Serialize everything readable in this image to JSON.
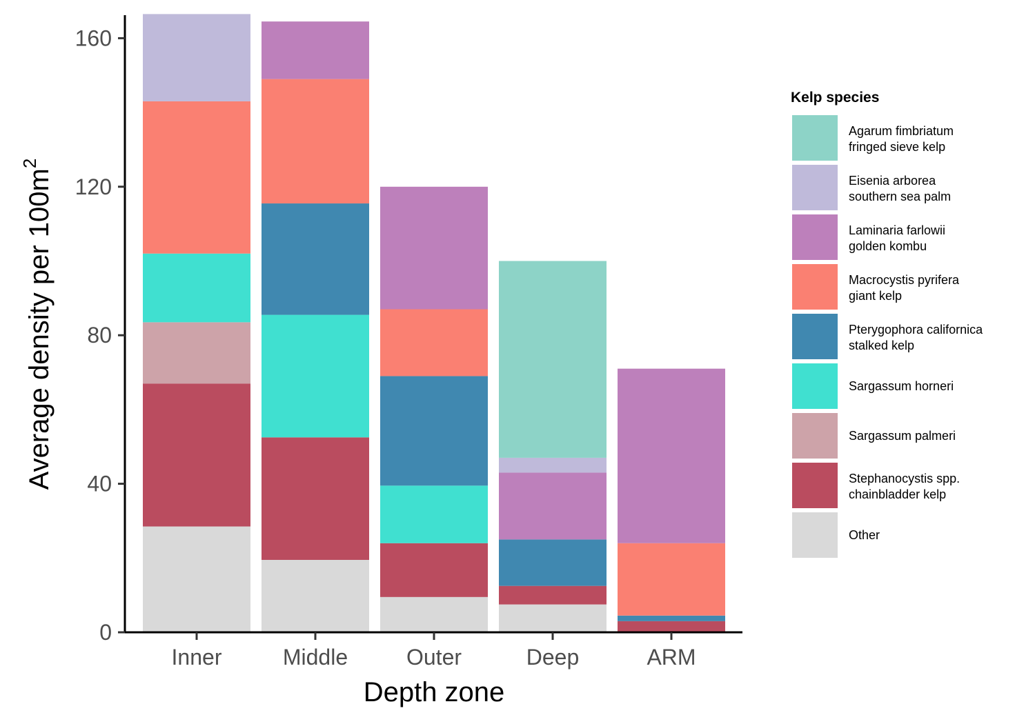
{
  "chart_data": {
    "type": "bar",
    "stacked": true,
    "xlabel": "Depth zone",
    "ylabel": "Average density per 100m",
    "ylabel_superscript": "2",
    "ylim": [
      0,
      166
    ],
    "yticks": [
      0,
      40,
      80,
      120,
      160
    ],
    "grid": false,
    "legend_position": "right",
    "legend_title": "Kelp species",
    "categories": [
      "Inner",
      "Middle",
      "Outer",
      "Deep",
      "ARM"
    ],
    "series": [
      {
        "name": "Other",
        "line1": "Other",
        "line2": "",
        "color": "#d9d9d9",
        "values": [
          28.5,
          19.5,
          9.5,
          7.5,
          0
        ]
      },
      {
        "name": "Stephanocystis spp. chainbladder kelp",
        "line1": "Stephanocystis spp.",
        "line2": "chainbladder kelp",
        "color": "#ba4c5f",
        "values": [
          38.5,
          33,
          14.5,
          5,
          3
        ]
      },
      {
        "name": "Sargassum palmeri",
        "line1": "Sargassum palmeri",
        "line2": "",
        "color": "#cda3a9",
        "values": [
          16.5,
          0,
          0,
          0,
          0
        ]
      },
      {
        "name": "Sargassum horneri",
        "line1": "Sargassum horneri",
        "line2": "",
        "color": "#40e0d0",
        "values": [
          18.5,
          33,
          15.5,
          0,
          0
        ]
      },
      {
        "name": "Pterygophora californica stalked kelp",
        "line1": "Pterygophora californica",
        "line2": "stalked kelp",
        "color": "#4088b0",
        "values": [
          0,
          30,
          29.5,
          12.5,
          1.5
        ]
      },
      {
        "name": "Macrocystis pyrifera giant kelp",
        "line1": "Macrocystis pyrifera",
        "line2": "giant kelp",
        "color": "#fa8072",
        "values": [
          41,
          33.5,
          18,
          0,
          19.5
        ]
      },
      {
        "name": "Laminaria farlowii golden kombu",
        "line1": "Laminaria farlowii",
        "line2": "golden kombu",
        "color": "#bd80bb",
        "values": [
          0,
          15.5,
          33,
          18,
          47
        ]
      },
      {
        "name": "Eisenia arborea southern sea palm",
        "line1": "Eisenia arborea",
        "line2": "southern sea palm",
        "color": "#bfbada",
        "values": [
          23.5,
          0,
          0,
          4,
          0
        ]
      },
      {
        "name": "Agarum fimbriatum fringed sieve kelp",
        "line1": "Agarum fimbriatum",
        "line2": "fringed sieve kelp",
        "color": "#8dd3c7",
        "values": [
          0,
          0,
          0,
          53,
          0
        ]
      }
    ]
  }
}
